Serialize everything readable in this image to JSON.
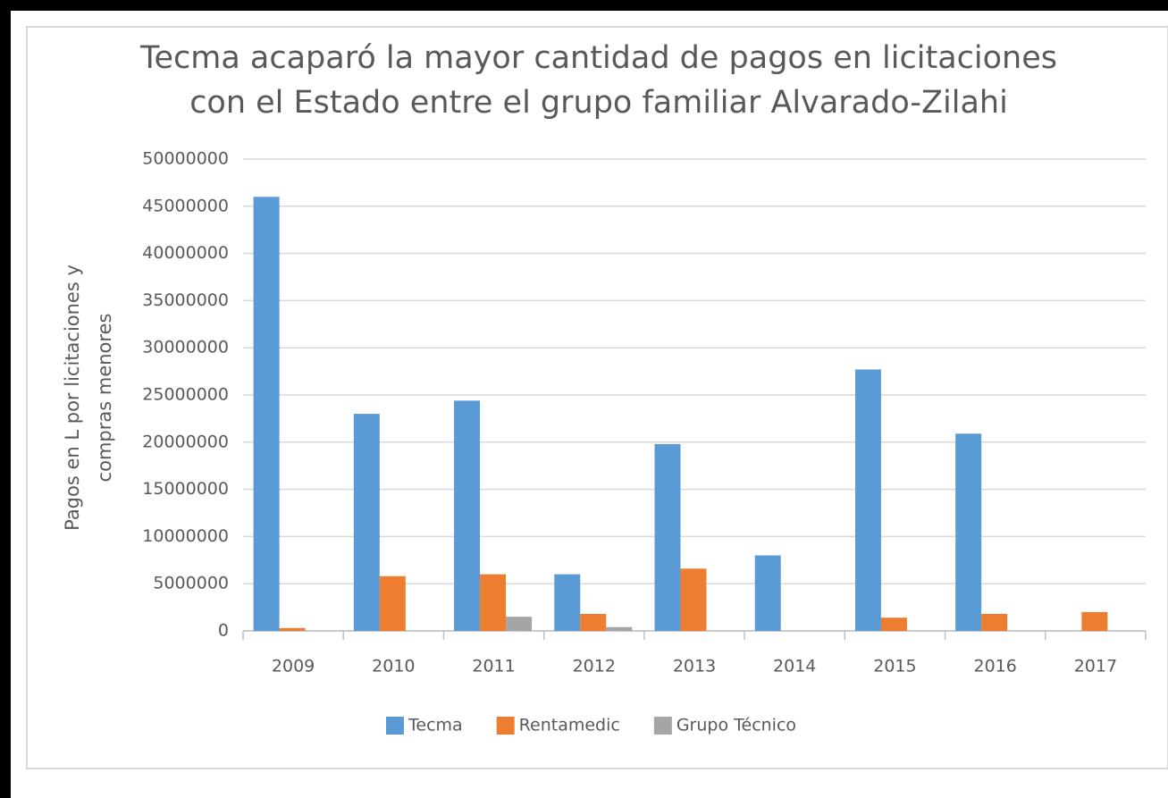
{
  "chart_data": {
    "type": "bar",
    "title": [
      "Tecma acaparó la mayor cantidad de pagos en licitaciones",
      "con el Estado entre el grupo familiar Alvarado-Zilahi"
    ],
    "ylabel": [
      "Pagos en L por licitaciones y",
      "compras menores"
    ],
    "categories": [
      "2009",
      "2010",
      "2011",
      "2012",
      "2013",
      "2014",
      "2015",
      "2016",
      "2017"
    ],
    "series": [
      {
        "name": "Tecma",
        "color": "#5b9bd5",
        "values": [
          46000000,
          23000000,
          24400000,
          6000000,
          19800000,
          8000000,
          27700000,
          20900000,
          0
        ]
      },
      {
        "name": "Rentamedic",
        "color": "#ed7d31",
        "values": [
          300000,
          5800000,
          6000000,
          1800000,
          6600000,
          0,
          1400000,
          1800000,
          2000000
        ]
      },
      {
        "name": "Grupo Técnico",
        "color": "#a5a5a5",
        "values": [
          0,
          0,
          1500000,
          400000,
          0,
          0,
          0,
          0,
          0
        ]
      }
    ],
    "ylim": [
      0,
      50000000
    ],
    "yticks": [
      0,
      5000000,
      10000000,
      15000000,
      20000000,
      25000000,
      30000000,
      35000000,
      40000000,
      45000000,
      50000000
    ],
    "grid": true,
    "legend": "bottom"
  }
}
